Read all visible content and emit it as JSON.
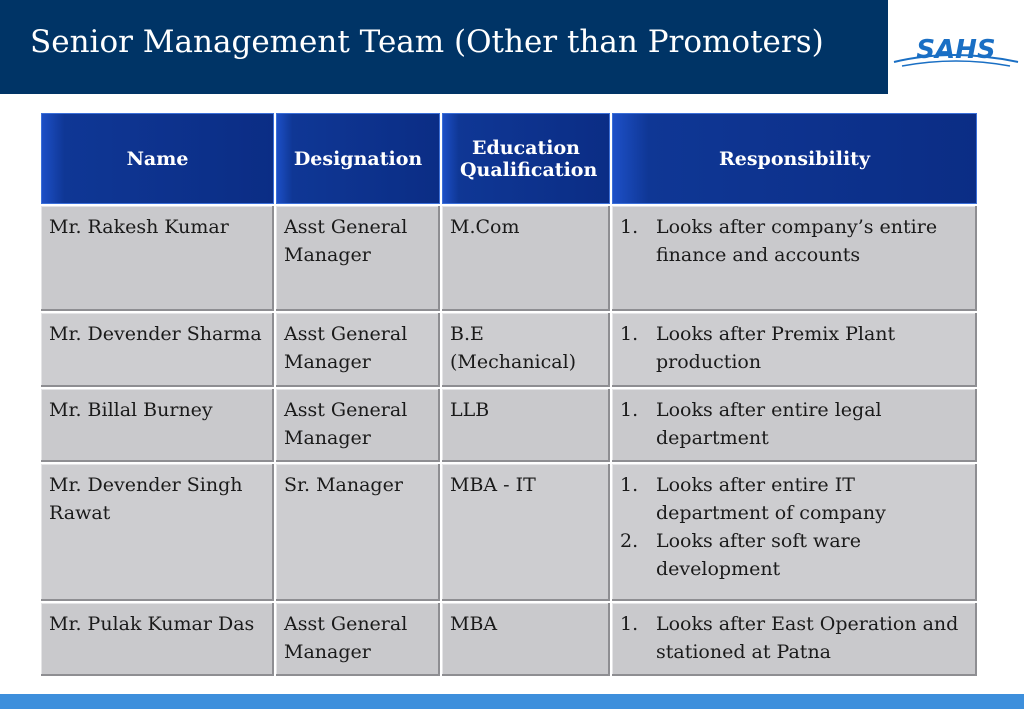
{
  "header": {
    "title": "Senior Management Team (Other than Promoters)",
    "logo_text": "SAHS"
  },
  "table": {
    "columns": [
      "Name",
      "Designation",
      "Education Qualification",
      "Responsibility"
    ],
    "rows": [
      {
        "name": "Mr. Rakesh Kumar",
        "designation": "Asst General Manager",
        "education": "M.Com",
        "responsibilities": [
          "Looks after company’s entire finance and accounts"
        ]
      },
      {
        "name": "Mr. Devender Sharma",
        "designation": "Asst General Manager",
        "education": "B.E (Mechanical)",
        "responsibilities": [
          "Looks after Premix Plant production"
        ]
      },
      {
        "name": "Mr. Billal Burney",
        "designation": "Asst General Manager",
        "education": "LLB",
        "responsibilities": [
          "Looks after entire legal department"
        ]
      },
      {
        "name": "Mr. Devender Singh Rawat",
        "designation": "Sr. Manager",
        "education": "MBA - IT",
        "responsibilities": [
          "Looks after entire IT department of company",
          "Looks after soft ware development"
        ]
      },
      {
        "name": "Mr. Pulak Kumar Das",
        "designation": "Asst General Manager",
        "education": "MBA",
        "responsibilities": [
          "Looks after East Operation and stationed at Patna"
        ]
      }
    ]
  },
  "colors": {
    "title_bar": "#003466",
    "header_cell": "#0b2d85",
    "body_cell": "#c9c9cc",
    "bottom_bar": "#3d8fdc",
    "logo": "#1a6fc4"
  }
}
